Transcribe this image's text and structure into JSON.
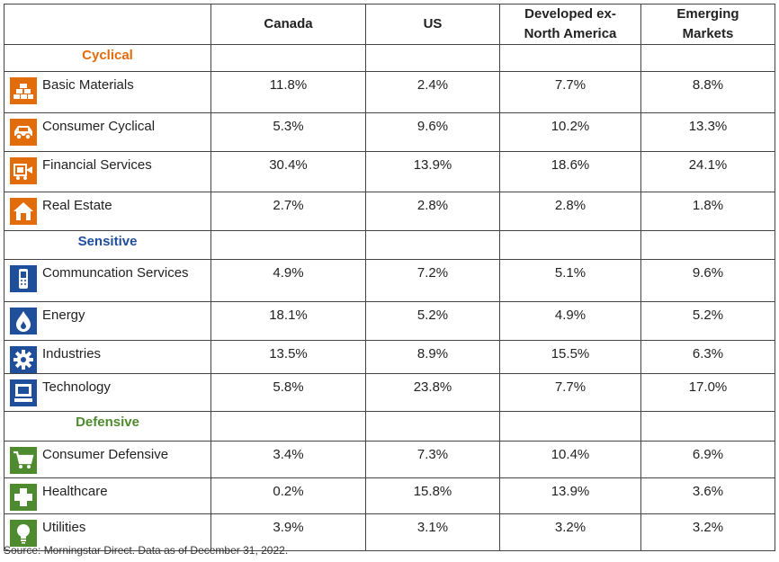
{
  "chart_data": {
    "type": "table",
    "columns": [
      "Canada",
      "US",
      "Developed ex-North America",
      "Emerging Markets"
    ],
    "column_headers": [
      {
        "line1": "Canada",
        "line2": ""
      },
      {
        "line1": "US",
        "line2": ""
      },
      {
        "line1": "Developed ex-",
        "line2": "North America"
      },
      {
        "line1": "Emerging",
        "line2": "Markets"
      }
    ],
    "groups": [
      {
        "name": "Cyclical",
        "color": "#E36C0A",
        "rows": [
          {
            "label": "Basic Materials",
            "icon": "basic-materials-icon",
            "values": [
              "11.8%",
              "2.4%",
              "7.7%",
              "8.8%"
            ]
          },
          {
            "label": "Consumer Cyclical",
            "icon": "car-icon",
            "values": [
              "5.3%",
              "9.6%",
              "10.2%",
              "13.3%"
            ]
          },
          {
            "label": "Financial Services",
            "icon": "financial-services-icon",
            "values": [
              "30.4%",
              "13.9%",
              "18.6%",
              "24.1%"
            ]
          },
          {
            "label": "Real Estate",
            "icon": "house-icon",
            "values": [
              "2.7%",
              "2.8%",
              "2.8%",
              "1.8%"
            ]
          }
        ]
      },
      {
        "name": "Sensitive",
        "color": "#1F4E9A",
        "rows": [
          {
            "label": "Communcation Services",
            "icon": "phone-icon",
            "values": [
              "4.9%",
              "7.2%",
              "5.1%",
              "9.6%"
            ]
          },
          {
            "label": "Energy",
            "icon": "flame-icon",
            "values": [
              "18.1%",
              "5.2%",
              "4.9%",
              "5.2%"
            ]
          },
          {
            "label": "Industries",
            "icon": "gear-icon",
            "values": [
              "13.5%",
              "8.9%",
              "15.5%",
              "6.3%"
            ]
          },
          {
            "label": "Technology",
            "icon": "computer-icon",
            "values": [
              "5.8%",
              "23.8%",
              "7.7%",
              "17.0%"
            ]
          }
        ]
      },
      {
        "name": "Defensive",
        "color": "#4E8A2E",
        "rows": [
          {
            "label": "Consumer Defensive",
            "icon": "cart-icon",
            "values": [
              "3.4%",
              "7.3%",
              "10.4%",
              "6.9%"
            ]
          },
          {
            "label": "Healthcare",
            "icon": "cross-icon",
            "values": [
              "0.2%",
              "15.8%",
              "13.9%",
              "3.6%"
            ]
          },
          {
            "label": "Utilities",
            "icon": "lightbulb-icon",
            "values": [
              "3.9%",
              "3.1%",
              "3.2%",
              "3.2%"
            ]
          }
        ]
      }
    ]
  },
  "footer": {
    "source": "Source: Morningstar Direct. Data as of December 31, 2022."
  }
}
